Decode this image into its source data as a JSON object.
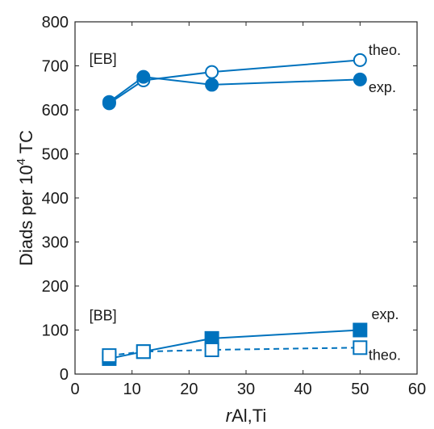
{
  "chart_data": {
    "type": "line",
    "title": "",
    "xlabel_italic": "r",
    "xlabel_rest": "Al,Ti",
    "ylabel_main": "Diads per 10",
    "ylabel_sup": "4",
    "ylabel_tail": " TC",
    "xlim": [
      0,
      60
    ],
    "ylim": [
      0,
      800
    ],
    "xticks": [
      0,
      10,
      20,
      30,
      40,
      50,
      60
    ],
    "yticks": [
      0,
      100,
      200,
      300,
      400,
      500,
      600,
      700,
      800
    ],
    "grid": false,
    "color": "#0072BD",
    "series": [
      {
        "group": "EB",
        "kind": "theo.",
        "marker": "circle",
        "filled": false,
        "dashed": false,
        "x": [
          6,
          12,
          24,
          50
        ],
        "y": [
          615,
          667,
          686,
          713
        ]
      },
      {
        "group": "EB",
        "kind": "exp.",
        "marker": "circle",
        "filled": true,
        "dashed": false,
        "x": [
          6,
          12,
          24,
          50
        ],
        "y": [
          618,
          675,
          657,
          669
        ]
      },
      {
        "group": "BB",
        "kind": "exp.",
        "marker": "square",
        "filled": true,
        "dashed": false,
        "x": [
          6,
          12,
          24,
          50
        ],
        "y": [
          35,
          51,
          81,
          100
        ]
      },
      {
        "group": "BB",
        "kind": "theo.",
        "marker": "square",
        "filled": false,
        "dashed": true,
        "x": [
          6,
          12,
          24,
          50
        ],
        "y": [
          42,
          51,
          55,
          60
        ]
      }
    ],
    "annotations": [
      {
        "text": "[EB]",
        "x": 2.5,
        "y": 705
      },
      {
        "text": "theo.",
        "x": 51.5,
        "y": 725
      },
      {
        "text": "exp.",
        "x": 51.5,
        "y": 640
      },
      {
        "text": "[BB]",
        "x": 2.5,
        "y": 122
      },
      {
        "text": "exp.",
        "x": 52,
        "y": 125
      },
      {
        "text": "theo.",
        "x": 51.5,
        "y": 32
      }
    ]
  }
}
